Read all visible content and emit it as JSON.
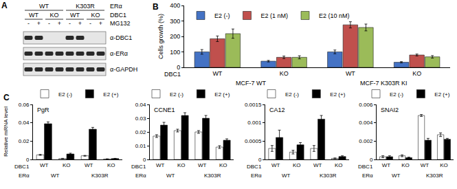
{
  "panel_a": {
    "label": "A",
    "header_rows": [
      {
        "label": "ERα",
        "cells": [
          "WT",
          "K303R"
        ]
      },
      {
        "label": "DBC1",
        "cells": [
          "WT",
          "KO",
          "WT",
          "KO"
        ]
      },
      {
        "label": "MG132",
        "cells": [
          "-",
          "+",
          "-",
          "+",
          "-",
          "+",
          "-",
          "+"
        ]
      }
    ],
    "blots": [
      {
        "label": "α-DBC1",
        "bands": [
          true,
          true,
          false,
          false,
          true,
          true,
          false,
          false
        ]
      },
      {
        "label": "α-ERα",
        "bands": [
          true,
          true,
          true,
          true,
          true,
          true,
          true,
          true
        ]
      },
      {
        "label": "α-GAPDH",
        "bands": [
          true,
          true,
          true,
          true,
          true,
          true,
          true,
          true
        ]
      }
    ]
  },
  "chart_data": [
    {
      "panel": "B",
      "type": "bar",
      "y_label": "Cells growth (%)",
      "categories": [
        "WT",
        "KO",
        "WT",
        "KO"
      ],
      "category_label": "DBC1",
      "groups": [
        "MCF-7 WT",
        "MCF-7 K303R KI"
      ],
      "series": [
        {
          "name": "E2 (-)",
          "color": "#4472c4",
          "values": [
            100,
            40,
            100,
            33
          ],
          "errors": [
            15,
            5,
            12,
            4
          ]
        },
        {
          "name": "E2 (1 nM)",
          "color": "#c0504d",
          "values": [
            185,
            65,
            275,
            80
          ],
          "errors": [
            18,
            8,
            20,
            6
          ]
        },
        {
          "name": "E2 (10 nM)",
          "color": "#9bbb59",
          "values": [
            218,
            65,
            258,
            68
          ],
          "errors": [
            30,
            10,
            22,
            8
          ]
        }
      ],
      "ylim": [
        0,
        400
      ],
      "yticks": [
        0,
        100,
        200,
        300,
        400
      ],
      "legend": "top-left",
      "grid": false
    },
    {
      "panel": "C",
      "type": "bar",
      "title": "PgR",
      "y_label": "Relative mRNA level",
      "categories": [
        "WT",
        "KO",
        "WT",
        "KO"
      ],
      "category_label": "DBC1",
      "groups": [
        "WT",
        "K303R"
      ],
      "group_label": "ERα",
      "series": [
        {
          "name": "E2 (-)",
          "color": "#ffffff",
          "values": [
            0.005,
            0.001,
            0.004,
            0.0005
          ],
          "errors": [
            0.0005,
            0.0002,
            0.0004,
            0.0001
          ]
        },
        {
          "name": "E2 (+)",
          "color": "#000000",
          "values": [
            0.039,
            0.006,
            0.033,
            0.001
          ],
          "errors": [
            0.002,
            0.0008,
            0.002,
            0.0002
          ]
        }
      ],
      "ylim": [
        0,
        0.06
      ],
      "yticks": [
        0,
        0.02,
        0.04,
        0.06
      ],
      "legend": "top-right",
      "grid": false
    },
    {
      "type": "bar",
      "title": "CCNE1",
      "categories": [
        "WT",
        "KO",
        "WT",
        "KO"
      ],
      "category_label": "DBC1",
      "groups": [
        "WT",
        "K303R"
      ],
      "group_label": "ERα",
      "series": [
        {
          "name": "E2 (-)",
          "color": "#ffffff",
          "values": [
            0.017,
            0.021,
            0.02,
            0.009
          ],
          "errors": [
            0.001,
            0.001,
            0.001,
            0.001
          ]
        },
        {
          "name": "E2 (+)",
          "color": "#000000",
          "values": [
            0.025,
            0.032,
            0.03,
            0.014
          ],
          "errors": [
            0.002,
            0.002,
            0.002,
            0.001
          ]
        }
      ],
      "ylim": [
        0,
        0.04
      ],
      "yticks": [
        0,
        0.01,
        0.02,
        0.03,
        0.04
      ],
      "legend": "top-right",
      "grid": false
    },
    {
      "type": "bar",
      "title": "CA12",
      "categories": [
        "WT",
        "KO",
        "WT",
        "KO"
      ],
      "category_label": "DBC1",
      "groups": [
        "WT",
        "K303R"
      ],
      "group_label": "ERα",
      "series": [
        {
          "name": "E2 (-)",
          "color": "#ffffff",
          "values": [
            0.0003,
            0.0002,
            0.0003,
            3e-05
          ],
          "errors": [
            8e-05,
            5e-05,
            8e-05,
            1e-05
          ]
        },
        {
          "name": "E2 (+)",
          "color": "#000000",
          "values": [
            0.0006,
            0.0004,
            0.0011,
            8e-05
          ],
          "errors": [
            0.0002,
            6e-05,
            0.0001,
            2e-05
          ]
        }
      ],
      "ylim": [
        0,
        0.0015
      ],
      "yticks": [
        0,
        0.0005,
        0.001,
        0.0015
      ],
      "legend": "top-right",
      "grid": false
    },
    {
      "type": "bar",
      "title": "SNAI2",
      "categories": [
        "WT",
        "KO",
        "WT",
        "KO"
      ],
      "category_label": "DBC1",
      "groups": [
        "WT",
        "K303R"
      ],
      "group_label": "ERα",
      "series": [
        {
          "name": "E2 (-)",
          "color": "#ffffff",
          "values": [
            0.0003,
            0.0004,
            0.0048,
            0.0027
          ],
          "errors": [
            0.0001,
            0.0001,
            0.0001,
            0.0002
          ]
        },
        {
          "name": "E2 (+)",
          "color": "#000000",
          "values": [
            0.0003,
            0.0002,
            0.0021,
            0.0022
          ],
          "errors": [
            0.0001,
            5e-05,
            0.0002,
            0.0001
          ]
        }
      ],
      "ylim": [
        0,
        0.006
      ],
      "yticks": [
        0,
        0.002,
        0.004,
        0.006
      ],
      "legend": "top-right",
      "grid": false
    }
  ]
}
